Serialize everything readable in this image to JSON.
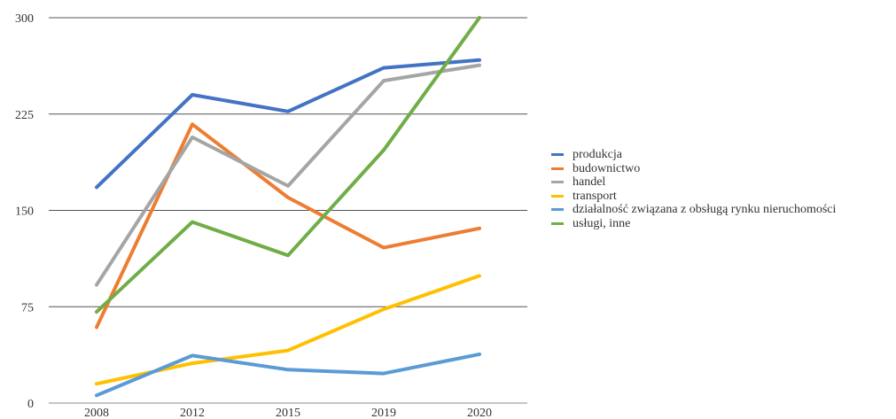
{
  "chart_data": {
    "type": "line",
    "categories": [
      "2008",
      "2012",
      "2015",
      "2019",
      "2020"
    ],
    "ylim": [
      0,
      300
    ],
    "yticks": [
      "0",
      "75",
      "150",
      "225",
      "300"
    ],
    "grid": true,
    "legend_position": "right",
    "series": [
      {
        "name": "produkcja",
        "color": "#4472C4",
        "values": [
          168,
          240,
          227,
          261,
          267
        ]
      },
      {
        "name": "budownictwo",
        "color": "#ED7D31",
        "values": [
          59,
          217,
          160,
          121,
          136
        ]
      },
      {
        "name": "handel",
        "color": "#A5A5A5",
        "values": [
          92,
          207,
          169,
          251,
          263
        ]
      },
      {
        "name": "transport",
        "color": "#FFC000",
        "values": [
          15,
          31,
          41,
          73,
          99
        ]
      },
      {
        "name": "działalność związana z obsługą rynku nieruchomości",
        "color": "#5B9BD5",
        "values": [
          6,
          37,
          26,
          23,
          38
        ]
      },
      {
        "name": "usługi, inne",
        "color": "#70AD47",
        "values": [
          71,
          141,
          115,
          197,
          300
        ]
      }
    ]
  }
}
